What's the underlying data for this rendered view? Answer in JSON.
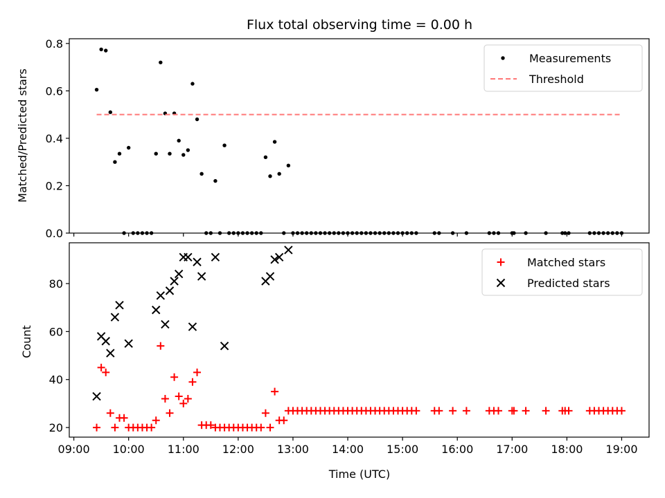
{
  "chart_data": [
    {
      "type": "scatter",
      "title": "Flux total observing time = 0.00 h",
      "xlabel": "",
      "ylabel": "Matched/Predicted stars",
      "xlim": [
        "08:55",
        "19:30"
      ],
      "ylim": [
        0,
        0.82
      ],
      "xticks": [
        "09:00",
        "10:00",
        "11:00",
        "12:00",
        "13:00",
        "14:00",
        "15:00",
        "16:00",
        "17:00",
        "18:00",
        "19:00"
      ],
      "yticks": [
        "0.0",
        "0.2",
        "0.4",
        "0.6",
        "0.8"
      ],
      "legend_position": "top-right",
      "series": [
        {
          "name": "Measurements",
          "color": "#000000",
          "marker": "dot",
          "points": [
            [
              "09:25",
              0.605
            ],
            [
              "09:30",
              0.775
            ],
            [
              "09:35",
              0.77
            ],
            [
              "09:40",
              0.51
            ],
            [
              "09:45",
              0.3
            ],
            [
              "09:50",
              0.335
            ],
            [
              "09:55",
              0.0
            ],
            [
              "10:00",
              0.36
            ],
            [
              "10:05",
              0.0
            ],
            [
              "10:10",
              0.0
            ],
            [
              "10:15",
              0.0
            ],
            [
              "10:20",
              0.0
            ],
            [
              "10:25",
              0.0
            ],
            [
              "10:30",
              0.335
            ],
            [
              "10:35",
              0.72
            ],
            [
              "10:40",
              0.505
            ],
            [
              "10:45",
              0.335
            ],
            [
              "10:50",
              0.505
            ],
            [
              "10:55",
              0.39
            ],
            [
              "11:00",
              0.33
            ],
            [
              "11:05",
              0.35
            ],
            [
              "11:10",
              0.63
            ],
            [
              "11:15",
              0.48
            ],
            [
              "11:20",
              0.25
            ],
            [
              "11:25",
              0.0
            ],
            [
              "11:30",
              0.0
            ],
            [
              "11:35",
              0.22
            ],
            [
              "11:40",
              0.0
            ],
            [
              "11:45",
              0.37
            ],
            [
              "11:50",
              0.0
            ],
            [
              "11:55",
              0.0
            ],
            [
              "12:00",
              0.0
            ],
            [
              "12:05",
              0.0
            ],
            [
              "12:10",
              0.0
            ],
            [
              "12:15",
              0.0
            ],
            [
              "12:20",
              0.0
            ],
            [
              "12:25",
              0.0
            ],
            [
              "12:30",
              0.32
            ],
            [
              "12:35",
              0.24
            ],
            [
              "12:40",
              0.385
            ],
            [
              "12:45",
              0.25
            ],
            [
              "12:50",
              0.0
            ],
            [
              "12:55",
              0.285
            ],
            [
              "13:00",
              0.0
            ],
            [
              "13:05",
              0.0
            ],
            [
              "13:10",
              0.0
            ],
            [
              "13:15",
              0.0
            ],
            [
              "13:20",
              0.0
            ],
            [
              "13:25",
              0.0
            ],
            [
              "13:30",
              0.0
            ],
            [
              "13:35",
              0.0
            ],
            [
              "13:40",
              0.0
            ],
            [
              "13:45",
              0.0
            ],
            [
              "13:50",
              0.0
            ],
            [
              "13:55",
              0.0
            ],
            [
              "14:00",
              0.0
            ],
            [
              "14:05",
              0.0
            ],
            [
              "14:10",
              0.0
            ],
            [
              "14:15",
              0.0
            ],
            [
              "14:20",
              0.0
            ],
            [
              "14:25",
              0.0
            ],
            [
              "14:30",
              0.0
            ],
            [
              "14:35",
              0.0
            ],
            [
              "14:40",
              0.0
            ],
            [
              "14:45",
              0.0
            ],
            [
              "14:50",
              0.0
            ],
            [
              "14:55",
              0.0
            ],
            [
              "15:00",
              0.0
            ],
            [
              "15:05",
              0.0
            ],
            [
              "15:10",
              0.0
            ],
            [
              "15:15",
              0.0
            ],
            [
              "15:35",
              0.0
            ],
            [
              "15:40",
              0.0
            ],
            [
              "15:55",
              0.0
            ],
            [
              "16:10",
              0.0
            ],
            [
              "16:35",
              0.0
            ],
            [
              "16:40",
              0.0
            ],
            [
              "16:45",
              0.0
            ],
            [
              "17:00",
              0.0
            ],
            [
              "17:02",
              0.0
            ],
            [
              "17:15",
              0.0
            ],
            [
              "17:37",
              0.0
            ],
            [
              "17:55",
              0.0
            ],
            [
              "17:58",
              0.0
            ],
            [
              "18:02",
              0.0
            ],
            [
              "18:25",
              0.0
            ],
            [
              "18:30",
              0.0
            ],
            [
              "18:35",
              0.0
            ],
            [
              "18:40",
              0.0
            ],
            [
              "18:45",
              0.0
            ],
            [
              "18:50",
              0.0
            ],
            [
              "18:55",
              0.0
            ],
            [
              "19:00",
              0.0
            ]
          ]
        },
        {
          "name": "Threshold",
          "color": "#ff7777",
          "style": "dashed",
          "points": [
            [
              "09:25",
              0.5
            ],
            [
              "19:00",
              0.5
            ]
          ]
        }
      ]
    },
    {
      "type": "scatter",
      "title": "",
      "xlabel": "Time (UTC)",
      "ylabel": "Count",
      "xlim": [
        "08:55",
        "19:30"
      ],
      "ylim": [
        16,
        97
      ],
      "xticks": [
        "09:00",
        "10:00",
        "11:00",
        "12:00",
        "13:00",
        "14:00",
        "15:00",
        "16:00",
        "17:00",
        "18:00",
        "19:00"
      ],
      "yticks": [
        "20",
        "40",
        "60",
        "80"
      ],
      "legend_position": "top-right",
      "series": [
        {
          "name": "Matched stars",
          "color": "#ff0000",
          "marker": "plus",
          "points": [
            [
              "09:25",
              20
            ],
            [
              "09:30",
              45
            ],
            [
              "09:35",
              43
            ],
            [
              "09:40",
              26
            ],
            [
              "09:45",
              20
            ],
            [
              "09:50",
              24
            ],
            [
              "09:55",
              24
            ],
            [
              "10:00",
              20
            ],
            [
              "10:05",
              20
            ],
            [
              "10:10",
              20
            ],
            [
              "10:15",
              20
            ],
            [
              "10:20",
              20
            ],
            [
              "10:25",
              20
            ],
            [
              "10:30",
              23
            ],
            [
              "10:35",
              54
            ],
            [
              "10:40",
              32
            ],
            [
              "10:45",
              26
            ],
            [
              "10:50",
              41
            ],
            [
              "10:55",
              33
            ],
            [
              "11:00",
              30
            ],
            [
              "11:05",
              32
            ],
            [
              "11:10",
              39
            ],
            [
              "11:15",
              43
            ],
            [
              "11:20",
              21
            ],
            [
              "11:25",
              21
            ],
            [
              "11:30",
              21
            ],
            [
              "11:35",
              20
            ],
            [
              "11:40",
              20
            ],
            [
              "11:45",
              20
            ],
            [
              "11:50",
              20
            ],
            [
              "11:55",
              20
            ],
            [
              "12:00",
              20
            ],
            [
              "12:05",
              20
            ],
            [
              "12:10",
              20
            ],
            [
              "12:15",
              20
            ],
            [
              "12:20",
              20
            ],
            [
              "12:25",
              20
            ],
            [
              "12:30",
              26
            ],
            [
              "12:35",
              20
            ],
            [
              "12:40",
              35
            ],
            [
              "12:45",
              23
            ],
            [
              "12:50",
              23
            ],
            [
              "12:55",
              27
            ],
            [
              "13:00",
              27
            ],
            [
              "13:05",
              27
            ],
            [
              "13:10",
              27
            ],
            [
              "13:15",
              27
            ],
            [
              "13:20",
              27
            ],
            [
              "13:25",
              27
            ],
            [
              "13:30",
              27
            ],
            [
              "13:35",
              27
            ],
            [
              "13:40",
              27
            ],
            [
              "13:45",
              27
            ],
            [
              "13:50",
              27
            ],
            [
              "13:55",
              27
            ],
            [
              "14:00",
              27
            ],
            [
              "14:05",
              27
            ],
            [
              "14:10",
              27
            ],
            [
              "14:15",
              27
            ],
            [
              "14:20",
              27
            ],
            [
              "14:25",
              27
            ],
            [
              "14:30",
              27
            ],
            [
              "14:35",
              27
            ],
            [
              "14:40",
              27
            ],
            [
              "14:45",
              27
            ],
            [
              "14:50",
              27
            ],
            [
              "14:55",
              27
            ],
            [
              "15:00",
              27
            ],
            [
              "15:05",
              27
            ],
            [
              "15:10",
              27
            ],
            [
              "15:15",
              27
            ],
            [
              "15:35",
              27
            ],
            [
              "15:40",
              27
            ],
            [
              "15:55",
              27
            ],
            [
              "16:10",
              27
            ],
            [
              "16:35",
              27
            ],
            [
              "16:40",
              27
            ],
            [
              "16:45",
              27
            ],
            [
              "17:00",
              27
            ],
            [
              "17:02",
              27
            ],
            [
              "17:15",
              27
            ],
            [
              "17:37",
              27
            ],
            [
              "17:55",
              27
            ],
            [
              "17:58",
              27
            ],
            [
              "18:02",
              27
            ],
            [
              "18:25",
              27
            ],
            [
              "18:30",
              27
            ],
            [
              "18:35",
              27
            ],
            [
              "18:40",
              27
            ],
            [
              "18:45",
              27
            ],
            [
              "18:50",
              27
            ],
            [
              "18:55",
              27
            ],
            [
              "19:00",
              27
            ]
          ]
        },
        {
          "name": "Predicted stars",
          "color": "#000000",
          "marker": "x",
          "points": [
            [
              "09:25",
              33
            ],
            [
              "09:30",
              58
            ],
            [
              "09:35",
              56
            ],
            [
              "09:40",
              51
            ],
            [
              "09:45",
              66
            ],
            [
              "09:50",
              71
            ],
            [
              "10:00",
              55
            ],
            [
              "10:30",
              69
            ],
            [
              "10:35",
              75
            ],
            [
              "10:40",
              63
            ],
            [
              "10:45",
              77
            ],
            [
              "10:50",
              81
            ],
            [
              "10:55",
              84
            ],
            [
              "11:00",
              91
            ],
            [
              "11:05",
              91
            ],
            [
              "11:10",
              62
            ],
            [
              "11:15",
              89
            ],
            [
              "11:20",
              83
            ],
            [
              "11:35",
              91
            ],
            [
              "11:45",
              54
            ],
            [
              "12:30",
              81
            ],
            [
              "12:35",
              83
            ],
            [
              "12:40",
              90
            ],
            [
              "12:45",
              91
            ],
            [
              "12:55",
              94
            ]
          ]
        }
      ]
    }
  ]
}
